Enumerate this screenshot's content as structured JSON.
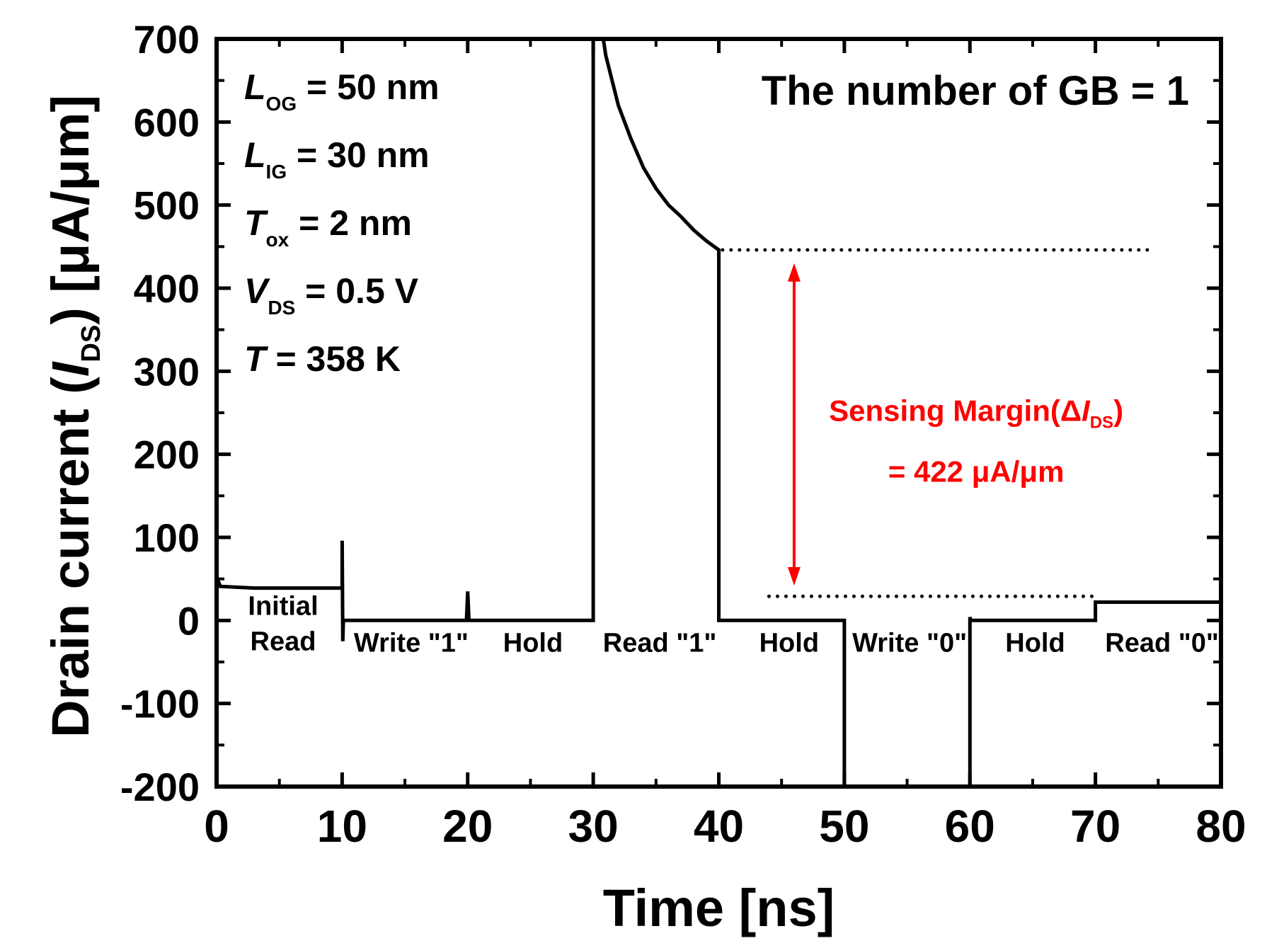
{
  "chart_data": {
    "type": "line",
    "xlabel": "Time [ns]",
    "ylabel": {
      "prefix": "Drain current (",
      "symbol": "I",
      "sub": "DS",
      "suffix": ") [μA/μm]"
    },
    "xlim": [
      0,
      80
    ],
    "ylim": [
      -200,
      700
    ],
    "x_ticks": [
      0,
      10,
      20,
      30,
      40,
      50,
      60,
      70,
      80
    ],
    "y_ticks": [
      -200,
      -100,
      0,
      100,
      200,
      300,
      400,
      500,
      600,
      700
    ],
    "series": [
      {
        "color": "#000000",
        "points": [
          [
            0,
            52
          ],
          [
            0.3,
            41
          ],
          [
            3,
            39
          ],
          [
            9.95,
            39
          ],
          [
            10,
            39
          ],
          [
            10,
            96
          ],
          [
            10.05,
            -25
          ],
          [
            10.1,
            0
          ],
          [
            19.9,
            0
          ],
          [
            20,
            35
          ],
          [
            20.1,
            0
          ],
          [
            29.9,
            0
          ],
          [
            30,
            0
          ],
          [
            30,
            700
          ],
          [
            30.8,
            700
          ],
          [
            31,
            680
          ],
          [
            32,
            620
          ],
          [
            33,
            580
          ],
          [
            34,
            545
          ],
          [
            35,
            520
          ],
          [
            36,
            500
          ],
          [
            37,
            486
          ],
          [
            38,
            470
          ],
          [
            39,
            457
          ],
          [
            40,
            446
          ],
          [
            40,
            0
          ],
          [
            50,
            0
          ],
          [
            50,
            -200
          ],
          [
            50,
            -200
          ],
          [
            60,
            -200
          ],
          [
            60,
            4
          ],
          [
            60.05,
            0
          ],
          [
            70,
            0
          ],
          [
            70,
            22
          ],
          [
            80,
            22
          ]
        ]
      }
    ],
    "reference_lines": [
      {
        "style": "dotted",
        "y": 446,
        "x": [
          40.3,
          74.5
        ]
      },
      {
        "style": "dotted",
        "y": 29,
        "x": [
          44,
          70
        ]
      }
    ],
    "sensing_margin": {
      "x": 46,
      "y_top": 430,
      "y_bottom": 42,
      "color": "#ff0000",
      "label_line1": {
        "prefix": "Sensing Margin(Δ",
        "symbol": "I",
        "sub": "DS",
        "suffix": ")"
      },
      "label_line2": "= 422 μA/μm"
    },
    "parameters": [
      {
        "symbol": "L",
        "sub": "OG",
        "value": " = 50 nm"
      },
      {
        "symbol": "L",
        "sub": "IG",
        "value": " = 30 nm"
      },
      {
        "symbol": "T",
        "sub": "ox",
        "value": " = 2 nm"
      },
      {
        "symbol": "V",
        "sub": "DS",
        "value": " = 0.5 V"
      },
      {
        "symbol": "T",
        "sub": "",
        "value": " = 358 K"
      }
    ],
    "annotation_top_right": "The number of GB = 1",
    "phase_labels": [
      {
        "lines": [
          "Initial",
          "Read"
        ],
        "x": 5.3
      },
      {
        "lines": [
          "Write \"1\""
        ],
        "x": 15.5
      },
      {
        "lines": [
          "Hold"
        ],
        "x": 25.2
      },
      {
        "lines": [
          "Read \"1\""
        ],
        "x": 35.3
      },
      {
        "lines": [
          "Hold"
        ],
        "x": 45.6
      },
      {
        "lines": [
          "Write \"0\""
        ],
        "x": 55.2
      },
      {
        "lines": [
          "Hold"
        ],
        "x": 65.2
      },
      {
        "lines": [
          "Read \"0\""
        ],
        "x": 75.3
      }
    ]
  }
}
